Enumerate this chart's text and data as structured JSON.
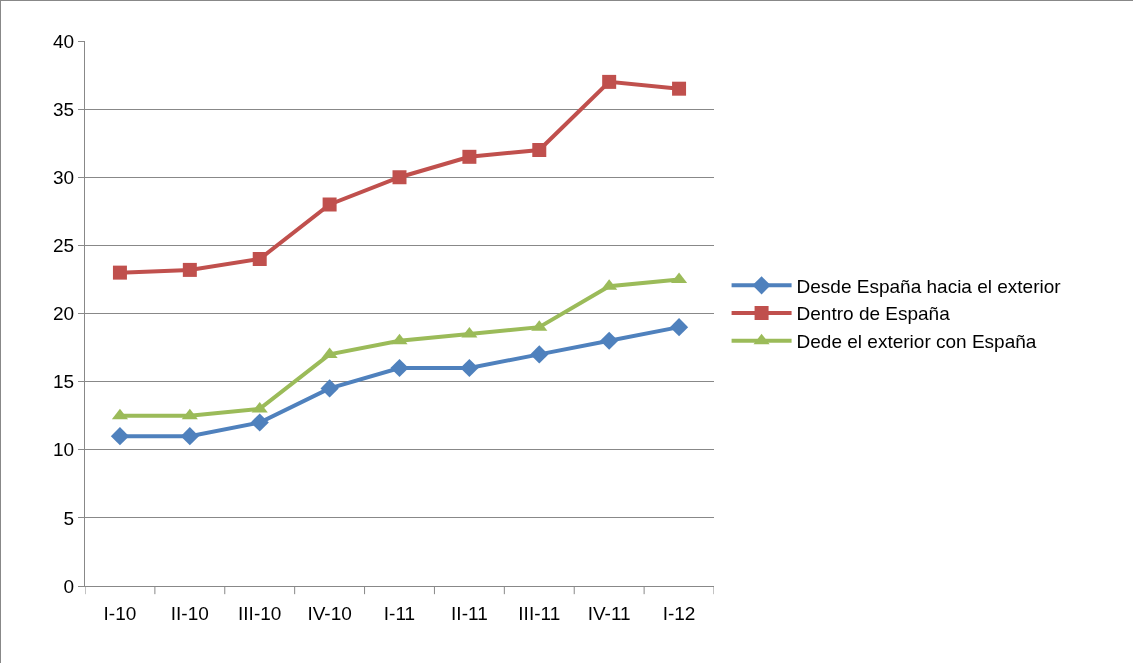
{
  "chart_data": {
    "type": "line",
    "categories": [
      "I-10",
      "II-10",
      "III-10",
      "IV-10",
      "I-11",
      "II-11",
      "III-11",
      "IV-11",
      "I-12"
    ],
    "series": [
      {
        "name": "Desde España hacia el exterior",
        "color": "#4f81bd",
        "marker": "diamond",
        "values": [
          11,
          11,
          12,
          14.5,
          16,
          16,
          17,
          18,
          19
        ]
      },
      {
        "name": "Dentro de España",
        "color": "#c0504d",
        "marker": "square",
        "values": [
          23,
          23.2,
          24,
          28,
          30,
          31.5,
          32,
          37,
          36.5
        ]
      },
      {
        "name": "Dede el exterior con España",
        "color": "#9bbb59",
        "marker": "triangle",
        "values": [
          12.5,
          12.5,
          13,
          17,
          18,
          18.5,
          19,
          22,
          22.5
        ]
      }
    ],
    "ylim": [
      0,
      40
    ],
    "yticks": [
      0,
      5,
      10,
      15,
      20,
      25,
      30,
      35,
      40
    ],
    "grid": "y",
    "legend": "right",
    "line_style": "solid"
  }
}
